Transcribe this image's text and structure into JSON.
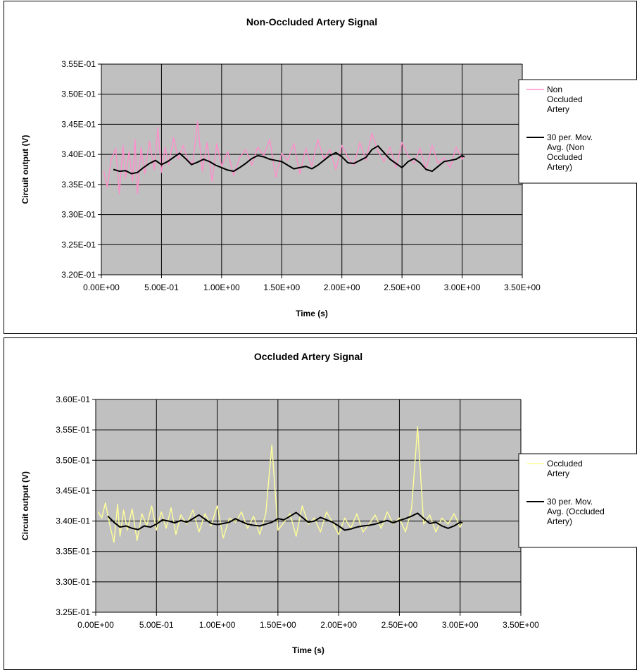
{
  "chart_data": [
    {
      "type": "line",
      "title": "Non-Occluded Artery Signal",
      "xlabel": "Time (s)",
      "ylabel": "Circuit output (V)",
      "xlim": [
        0,
        3.5
      ],
      "ylim": [
        0.32,
        0.355
      ],
      "x_ticks": [
        "0.00E+00",
        "5.00E-01",
        "1.00E+00",
        "1.50E+00",
        "2.00E+00",
        "2.50E+00",
        "3.00E+00",
        "3.50E+00"
      ],
      "y_ticks": [
        "3.20E-01",
        "3.25E-01",
        "3.30E-01",
        "3.35E-01",
        "3.40E-01",
        "3.45E-01",
        "3.50E-01",
        "3.55E-01"
      ],
      "grid": true,
      "plot_background": "#c0c0c0",
      "legend": "right",
      "series": [
        {
          "name": "Non Occluded Artery",
          "legend_lines": [
            "Non",
            "Occluded",
            "Artery"
          ],
          "color": "#ff8ecb",
          "x": [
            0.02,
            0.05,
            0.08,
            0.12,
            0.15,
            0.18,
            0.2,
            0.23,
            0.26,
            0.28,
            0.3,
            0.33,
            0.36,
            0.4,
            0.44,
            0.47,
            0.5,
            0.53,
            0.56,
            0.6,
            0.64,
            0.68,
            0.72,
            0.76,
            0.8,
            0.84,
            0.88,
            0.92,
            0.96,
            1.0,
            1.05,
            1.1,
            1.15,
            1.2,
            1.25,
            1.3,
            1.35,
            1.4,
            1.45,
            1.5,
            1.55,
            1.6,
            1.65,
            1.7,
            1.75,
            1.8,
            1.85,
            1.9,
            1.95,
            2.0,
            2.05,
            2.1,
            2.15,
            2.2,
            2.25,
            2.3,
            2.35,
            2.4,
            2.45,
            2.5,
            2.55,
            2.6,
            2.65,
            2.7,
            2.75,
            2.8,
            2.85,
            2.9,
            2.95,
            3.0,
            3.02
          ],
          "y": [
            0.3372,
            0.3345,
            0.339,
            0.341,
            0.3335,
            0.3415,
            0.336,
            0.3405,
            0.3355,
            0.3425,
            0.3335,
            0.3412,
            0.3368,
            0.3422,
            0.3375,
            0.3445,
            0.337,
            0.3412,
            0.3383,
            0.3428,
            0.3392,
            0.3415,
            0.339,
            0.3385,
            0.3455,
            0.3372,
            0.342,
            0.3355,
            0.3418,
            0.338,
            0.3405,
            0.3365,
            0.3395,
            0.3408,
            0.3382,
            0.3412,
            0.3398,
            0.3425,
            0.3362,
            0.3402,
            0.339,
            0.3418,
            0.3368,
            0.341,
            0.338,
            0.3425,
            0.3392,
            0.3408,
            0.3375,
            0.3415,
            0.3395,
            0.3382,
            0.342,
            0.339,
            0.3435,
            0.3405,
            0.3388,
            0.3412,
            0.3378,
            0.342,
            0.3398,
            0.3385,
            0.341,
            0.3375,
            0.3415,
            0.3385,
            0.3395,
            0.3378,
            0.3412,
            0.3392,
            0.3398
          ]
        },
        {
          "name": "30 per. Mov. Avg. (Non Occluded Artery)",
          "legend_lines": [
            "30 per. Mov.",
            "Avg. (Non",
            "Occluded",
            "Artery)"
          ],
          "color": "#000000",
          "x": [
            0.1,
            0.15,
            0.2,
            0.25,
            0.3,
            0.35,
            0.4,
            0.45,
            0.5,
            0.55,
            0.6,
            0.65,
            0.7,
            0.75,
            0.8,
            0.85,
            0.9,
            0.95,
            1.0,
            1.05,
            1.1,
            1.15,
            1.2,
            1.25,
            1.3,
            1.35,
            1.4,
            1.45,
            1.5,
            1.55,
            1.6,
            1.65,
            1.7,
            1.75,
            1.8,
            1.85,
            1.9,
            1.95,
            2.0,
            2.05,
            2.1,
            2.15,
            2.2,
            2.25,
            2.3,
            2.35,
            2.4,
            2.45,
            2.5,
            2.55,
            2.6,
            2.65,
            2.7,
            2.75,
            2.8,
            2.85,
            2.9,
            2.95,
            3.0,
            3.02
          ],
          "y": [
            0.3375,
            0.3372,
            0.3373,
            0.3368,
            0.337,
            0.3378,
            0.3385,
            0.339,
            0.3383,
            0.3388,
            0.3395,
            0.3402,
            0.3393,
            0.3383,
            0.3387,
            0.3392,
            0.3388,
            0.3382,
            0.3378,
            0.3374,
            0.3372,
            0.3378,
            0.3385,
            0.3393,
            0.3398,
            0.3396,
            0.3392,
            0.339,
            0.3388,
            0.3382,
            0.3376,
            0.3378,
            0.338,
            0.3376,
            0.3382,
            0.339,
            0.3398,
            0.3403,
            0.3396,
            0.3386,
            0.3385,
            0.339,
            0.3395,
            0.3408,
            0.3414,
            0.3403,
            0.3392,
            0.3385,
            0.3378,
            0.3388,
            0.3393,
            0.3386,
            0.3375,
            0.3372,
            0.338,
            0.3388,
            0.339,
            0.3392,
            0.3398,
            0.3396
          ]
        }
      ]
    },
    {
      "type": "line",
      "title": "Occluded Artery Signal",
      "xlabel": "Time (s)",
      "ylabel": "Circuit output (V)",
      "xlim": [
        0,
        3.5
      ],
      "ylim": [
        0.325,
        0.36
      ],
      "x_ticks": [
        "0.00E+00",
        "5.00E-01",
        "1.00E+00",
        "1.50E+00",
        "2.00E+00",
        "2.50E+00",
        "3.00E+00",
        "3.50E+00"
      ],
      "y_ticks": [
        "3.25E-01",
        "3.30E-01",
        "3.35E-01",
        "3.40E-01",
        "3.45E-01",
        "3.50E-01",
        "3.55E-01",
        "3.60E-01"
      ],
      "grid": true,
      "plot_background": "#c0c0c0",
      "legend": "right",
      "series": [
        {
          "name": "Occluded Artery",
          "legend_lines": [
            "Occluded",
            "Artery"
          ],
          "color": "#ffff99",
          "x": [
            0.02,
            0.05,
            0.08,
            0.12,
            0.15,
            0.18,
            0.2,
            0.23,
            0.26,
            0.3,
            0.34,
            0.38,
            0.42,
            0.46,
            0.5,
            0.54,
            0.58,
            0.62,
            0.66,
            0.7,
            0.75,
            0.8,
            0.85,
            0.9,
            0.95,
            1.0,
            1.05,
            1.1,
            1.15,
            1.2,
            1.25,
            1.3,
            1.35,
            1.4,
            1.45,
            1.5,
            1.55,
            1.6,
            1.65,
            1.7,
            1.75,
            1.8,
            1.85,
            1.9,
            1.95,
            2.0,
            2.05,
            2.1,
            2.15,
            2.2,
            2.25,
            2.3,
            2.35,
            2.4,
            2.45,
            2.5,
            2.55,
            2.6,
            2.65,
            2.7,
            2.75,
            2.8,
            2.85,
            2.9,
            2.95,
            3.0,
            3.02
          ],
          "y": [
            0.3415,
            0.3405,
            0.343,
            0.339,
            0.3365,
            0.3428,
            0.3375,
            0.3418,
            0.3385,
            0.342,
            0.3368,
            0.3412,
            0.3392,
            0.3425,
            0.3385,
            0.3415,
            0.3388,
            0.3422,
            0.3378,
            0.341,
            0.3395,
            0.3418,
            0.3382,
            0.3412,
            0.3392,
            0.3425,
            0.3372,
            0.3405,
            0.3398,
            0.3415,
            0.3388,
            0.3408,
            0.3378,
            0.3412,
            0.3525,
            0.3385,
            0.3398,
            0.3412,
            0.3375,
            0.3425,
            0.3395,
            0.3405,
            0.3382,
            0.3415,
            0.3398,
            0.3378,
            0.3405,
            0.3388,
            0.3412,
            0.3382,
            0.3395,
            0.341,
            0.3388,
            0.3415,
            0.3395,
            0.3405,
            0.3382,
            0.342,
            0.3555,
            0.3395,
            0.341,
            0.3382,
            0.3405,
            0.3395,
            0.3412,
            0.339,
            0.3398
          ]
        },
        {
          "name": "30 per. Mov. Avg. (Occluded Artery)",
          "legend_lines": [
            "30 per. Mov.",
            "Avg. (Occluded",
            "Artery)"
          ],
          "color": "#000000",
          "x": [
            0.1,
            0.15,
            0.2,
            0.25,
            0.3,
            0.35,
            0.4,
            0.45,
            0.5,
            0.55,
            0.6,
            0.65,
            0.7,
            0.75,
            0.8,
            0.85,
            0.9,
            0.95,
            1.0,
            1.05,
            1.1,
            1.15,
            1.2,
            1.25,
            1.3,
            1.35,
            1.4,
            1.45,
            1.5,
            1.55,
            1.6,
            1.65,
            1.7,
            1.75,
            1.8,
            1.85,
            1.9,
            1.95,
            2.0,
            2.05,
            2.1,
            2.15,
            2.2,
            2.25,
            2.3,
            2.35,
            2.4,
            2.45,
            2.5,
            2.55,
            2.6,
            2.65,
            2.7,
            2.75,
            2.8,
            2.85,
            2.9,
            2.95,
            3.0,
            3.02
          ],
          "y": [
            0.3408,
            0.3398,
            0.339,
            0.3392,
            0.3388,
            0.3386,
            0.3392,
            0.339,
            0.3395,
            0.3402,
            0.34,
            0.3397,
            0.3401,
            0.3398,
            0.3404,
            0.341,
            0.3403,
            0.3396,
            0.3394,
            0.3396,
            0.3398,
            0.3404,
            0.3399,
            0.3395,
            0.3393,
            0.3392,
            0.3395,
            0.3398,
            0.3404,
            0.3402,
            0.3408,
            0.3414,
            0.3406,
            0.3398,
            0.34,
            0.3406,
            0.3402,
            0.3398,
            0.3392,
            0.3385,
            0.3387,
            0.339,
            0.3392,
            0.3393,
            0.3395,
            0.3398,
            0.3401,
            0.3397,
            0.3401,
            0.3404,
            0.3408,
            0.3413,
            0.3404,
            0.3396,
            0.3398,
            0.3392,
            0.3388,
            0.3392,
            0.3398,
            0.3397
          ]
        }
      ]
    }
  ]
}
